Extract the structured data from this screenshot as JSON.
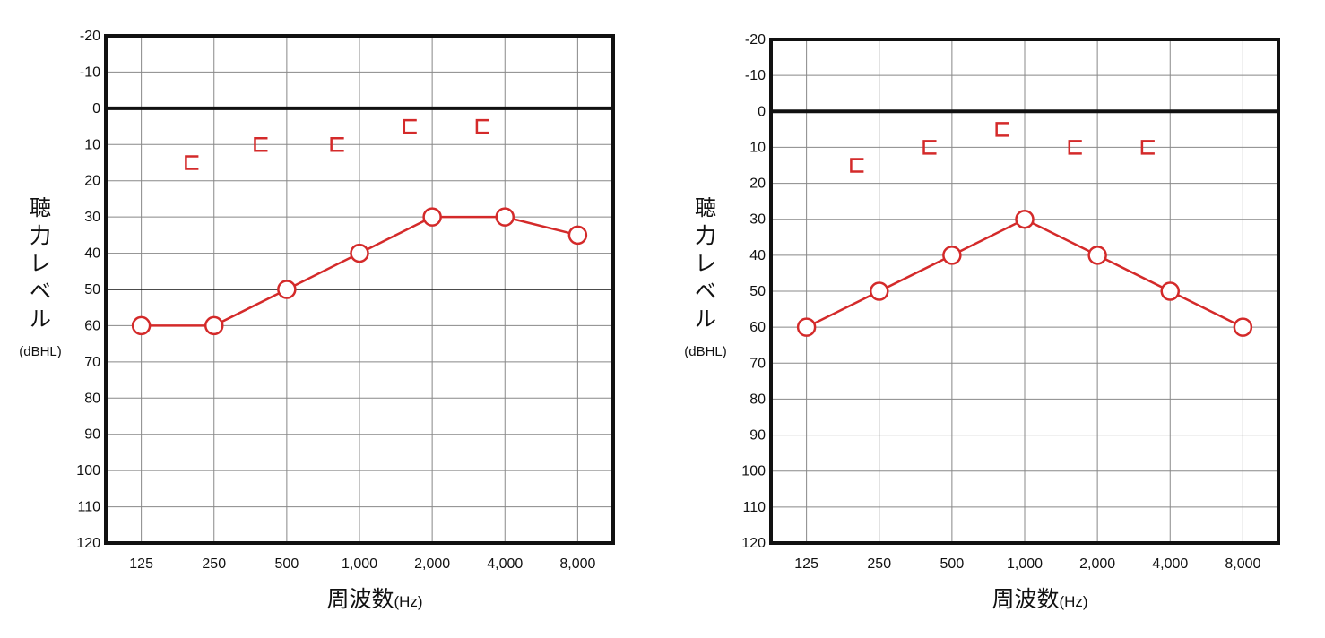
{
  "chart_data": [
    {
      "type": "line",
      "ylabel": "聴力レベル",
      "ylabel_unit": "(dBHL)",
      "xlabel": "周波数",
      "xlabel_unit": "(Hz)",
      "categories": [
        "125",
        "250",
        "500",
        "1,000",
        "2,000",
        "4,000",
        "8,000"
      ],
      "ylim": [
        -20,
        120
      ],
      "y_reversed": true,
      "yticks": [
        "-20",
        "-10",
        "0",
        "10",
        "20",
        "30",
        "40",
        "50",
        "60",
        "70",
        "80",
        "90",
        "100",
        "110",
        "120"
      ],
      "reference_lines": [
        0,
        50
      ],
      "grid": true,
      "colors": {
        "series": "#d42a2a",
        "grid": "#888888",
        "frame": "#111111"
      },
      "series": [
        {
          "marker": "circle",
          "line": true,
          "x": [
            0,
            1,
            2,
            3,
            4,
            5,
            6
          ],
          "values": [
            60,
            60,
            50,
            40,
            30,
            30,
            35
          ]
        },
        {
          "marker": "bracket",
          "line": false,
          "x": [
            0.7,
            1.65,
            2.7,
            3.7,
            4.7
          ],
          "values": [
            15,
            10,
            10,
            5,
            5
          ]
        }
      ]
    },
    {
      "type": "line",
      "ylabel": "聴力レベル",
      "ylabel_unit": "(dBHL)",
      "xlabel": "周波数",
      "xlabel_unit": "(Hz)",
      "categories": [
        "125",
        "250",
        "500",
        "1,000",
        "2,000",
        "4,000",
        "8,000"
      ],
      "ylim": [
        -20,
        120
      ],
      "y_reversed": true,
      "yticks": [
        "-20",
        "-10",
        "0",
        "10",
        "20",
        "30",
        "40",
        "50",
        "60",
        "70",
        "80",
        "90",
        "100",
        "110",
        "120"
      ],
      "reference_lines": [
        0
      ],
      "grid": true,
      "colors": {
        "series": "#d42a2a",
        "grid": "#888888",
        "frame": "#111111"
      },
      "series": [
        {
          "marker": "circle",
          "line": true,
          "x": [
            0,
            1,
            2,
            3,
            4,
            5,
            6
          ],
          "values": [
            60,
            50,
            40,
            30,
            40,
            50,
            60
          ]
        },
        {
          "marker": "bracket",
          "line": false,
          "x": [
            0.7,
            1.7,
            2.7,
            3.7,
            4.7
          ],
          "values": [
            15,
            10,
            5,
            10,
            10
          ]
        }
      ]
    }
  ]
}
